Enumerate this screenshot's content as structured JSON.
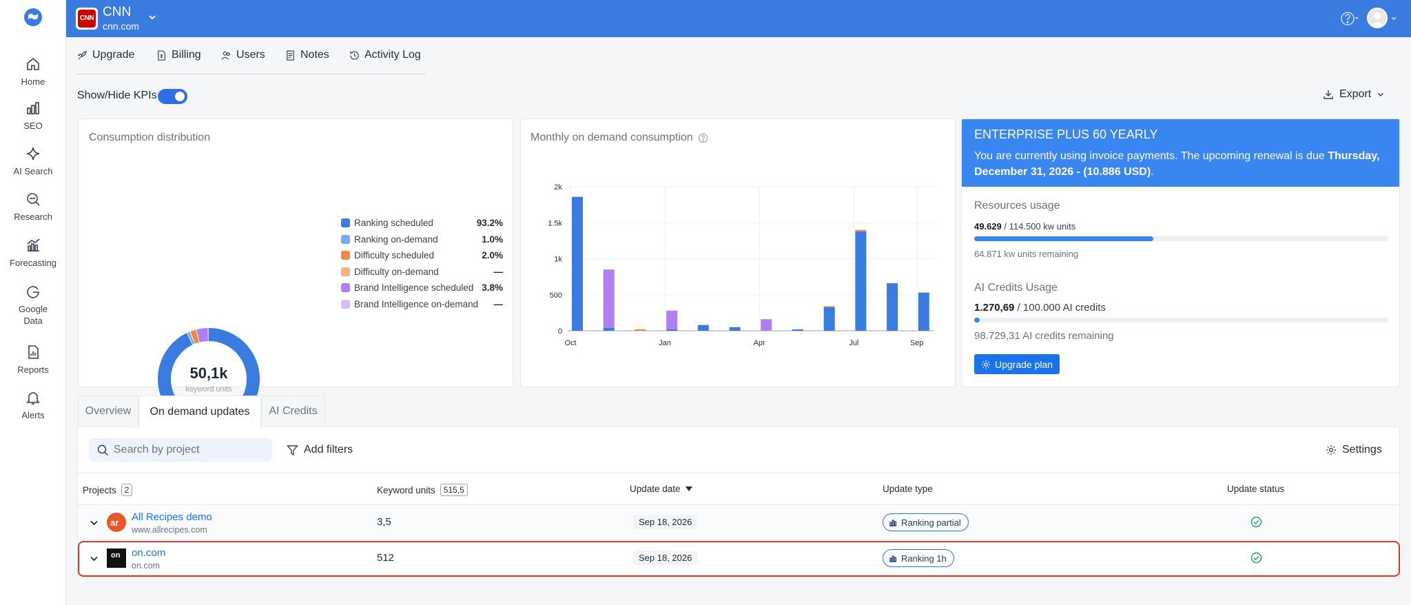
{
  "nav": {
    "items": [
      {
        "label": "Home",
        "icon": "home-icon"
      },
      {
        "label": "SEO",
        "icon": "bar-chart-icon"
      },
      {
        "label": "AI Search",
        "icon": "sparkle-icon"
      },
      {
        "label": "Research",
        "icon": "magnifier-icon"
      },
      {
        "label": "Forecasting",
        "icon": "forecast-chart-icon"
      },
      {
        "label": "Google Data",
        "label_line1": "Google",
        "label_line2": "Data",
        "icon": "google-g-icon"
      },
      {
        "label": "Reports",
        "icon": "report-icon"
      },
      {
        "label": "Alerts",
        "icon": "bell-icon"
      }
    ]
  },
  "topbar": {
    "brand_badge": "CNN",
    "brand_name": "CNN",
    "brand_domain": "cnn.com",
    "bg_color": "#3a7be0"
  },
  "subnav": {
    "items": [
      {
        "label": "Upgrade",
        "icon": "rocket-icon"
      },
      {
        "label": "Billing",
        "icon": "billing-icon"
      },
      {
        "label": "Users",
        "icon": "users-icon"
      },
      {
        "label": "Notes",
        "icon": "notes-icon"
      },
      {
        "label": "Activity Log",
        "icon": "history-icon"
      }
    ]
  },
  "kpi": {
    "label": "Show/Hide KPIs",
    "enabled": true
  },
  "export_label": "Export",
  "consumption": {
    "title": "Consumption distribution",
    "center_value": "50,1k",
    "center_label": "keyword units",
    "legend": [
      {
        "name": "Ranking scheduled",
        "pct": "93.2%",
        "color": "#3a7be0"
      },
      {
        "name": "Ranking on-demand",
        "pct": "1.0%",
        "color": "#79a9ee"
      },
      {
        "name": "Difficulty scheduled",
        "pct": "2.0%",
        "color": "#f0893f"
      },
      {
        "name": "Difficulty on-demand",
        "pct": "—",
        "color": "#f5b083"
      },
      {
        "name": "Brand Intelligence scheduled",
        "pct": "3.8%",
        "color": "#b07ef0"
      },
      {
        "name": "Brand Intelligence on-demand",
        "pct": "—",
        "color": "#d5bdf6"
      }
    ]
  },
  "monthly": {
    "title": "Monthly on demand consumption"
  },
  "chart_data": {
    "type": "bar",
    "stacked": true,
    "title": "Monthly on demand consumption",
    "x_tick_labels": [
      "Oct",
      "Jan",
      "Apr",
      "Jul",
      "Sep"
    ],
    "y_tick_labels": [
      "0",
      "500",
      "1k",
      "1.5k",
      "2k"
    ],
    "ylim": [
      0,
      2000
    ],
    "grid": true,
    "num_bars": 12,
    "tick_positions": [
      0,
      3,
      6,
      9,
      11
    ],
    "series": [
      {
        "color": "#3a7be0",
        "values": [
          1860,
          40,
          0,
          20,
          80,
          50,
          0,
          20,
          330,
          1380,
          660,
          530
        ]
      },
      {
        "color": "#f0893f",
        "values": [
          0,
          0,
          20,
          0,
          0,
          0,
          0,
          0,
          10,
          20,
          0,
          0
        ]
      },
      {
        "color": "#b07ef0",
        "values": [
          0,
          810,
          0,
          260,
          0,
          0,
          160,
          0,
          0,
          0,
          0,
          0
        ]
      }
    ]
  },
  "enterprise": {
    "title": "ENTERPRISE PLUS 60 YEARLY",
    "text_plain": "You are currently using invoice payments. The upcoming renewal is due ",
    "text_bold": "Thursday, December 31, 2026 - (10.886 USD)",
    "text_end": ".",
    "resources_title": "Resources usage",
    "resources_used": "49.629",
    "resources_rest": " / 114.500 kw units",
    "resources_fraction": 0.433,
    "resources_remaining": "64.871 kw units remaining",
    "ai_title": "AI Credits Usage",
    "ai_used": "1.270,69",
    "ai_rest": " / 100.000 AI credits",
    "ai_fraction": 0.0127,
    "ai_remaining": "98.729,31 AI credits remaining",
    "upgrade_label": "Upgrade plan"
  },
  "tabs": [
    {
      "label": "Overview",
      "active": false
    },
    {
      "label": "On demand updates",
      "active": true
    },
    {
      "label": "AI Credits",
      "active": false
    }
  ],
  "table": {
    "search_placeholder": "Search by project",
    "filters_label": "Add filters",
    "settings_label": "Settings",
    "headers": {
      "projects": "Projects",
      "projects_count": "2",
      "units": "Keyword units",
      "units_count": "515,5",
      "date": "Update date",
      "type": "Update type",
      "status": "Update status"
    },
    "rows": [
      {
        "name": "All Recipes demo",
        "domain": "www.allrecipes.com",
        "logo": "ar",
        "units": "3,5",
        "date": "Sep 18, 2026",
        "type": "Ranking partial",
        "status": "success"
      },
      {
        "name": "on.com",
        "domain": "on.com",
        "logo": "on",
        "units": "512",
        "date": "Sep 18, 2026",
        "type": "Ranking 1h",
        "status": "success"
      }
    ]
  }
}
